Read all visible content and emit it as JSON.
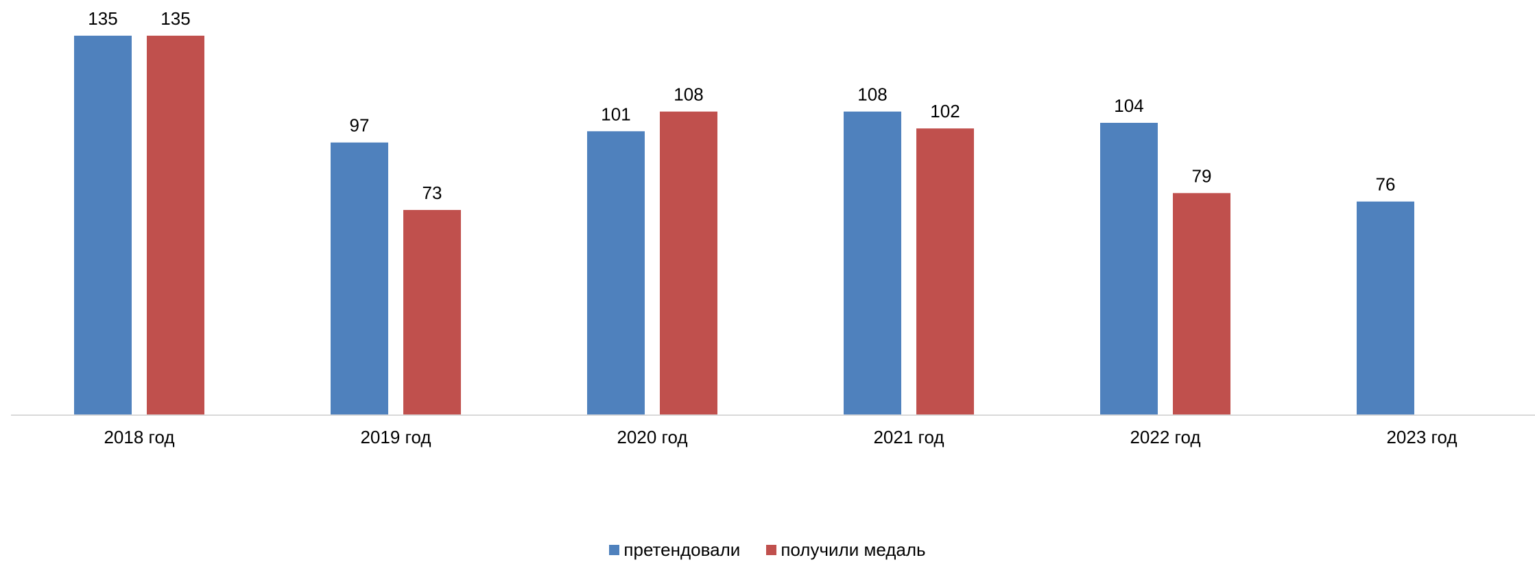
{
  "chart_data": {
    "type": "bar",
    "categories": [
      "2018 год",
      "2019 год",
      "2020 год",
      "2021 год",
      "2022 год",
      "2023 год"
    ],
    "series": [
      {
        "name": "претендовали",
        "color": "#4F81BD",
        "values": [
          135,
          97,
          101,
          108,
          104,
          76
        ]
      },
      {
        "name": "получили медаль",
        "color": "#C0504D",
        "values": [
          135,
          73,
          108,
          102,
          79,
          null
        ]
      }
    ],
    "ylim": [
      0,
      135
    ],
    "grid": false,
    "data_labels": true,
    "legend_position": "bottom"
  }
}
